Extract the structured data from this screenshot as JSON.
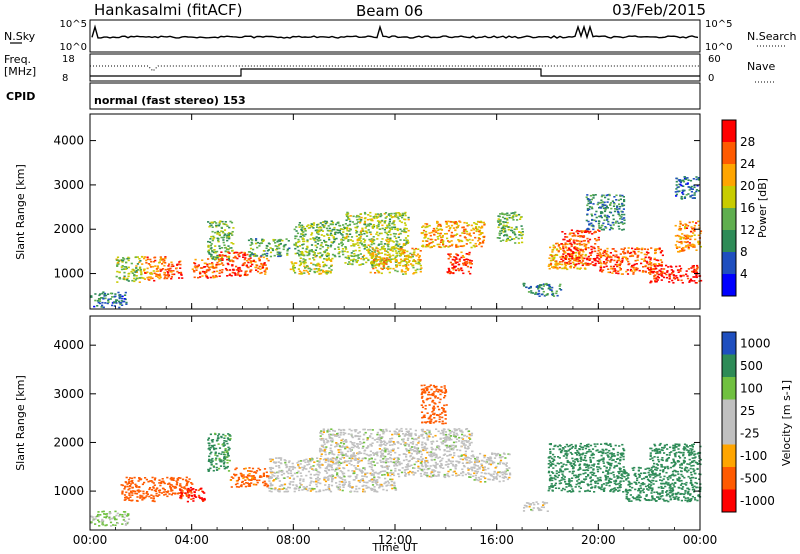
{
  "header": {
    "left_title": "Hankasalmi (fitACF)",
    "center_title": "Beam 06",
    "right_title": "03/Feb/2015"
  },
  "noise_panel": {
    "left_label": "N.Sky",
    "left_ticks": [
      "10^5",
      "10^0"
    ],
    "right_ticks": [
      "10^5",
      "10^0"
    ],
    "right_label": "N.Search"
  },
  "freq_panel": {
    "left_label_1": "Freq.",
    "left_label_2": "[MHz]",
    "left_ticks": [
      "18",
      "8"
    ],
    "right_ticks": [
      "60",
      "0"
    ],
    "right_label": "Nave"
  },
  "cpid_panel": {
    "label": "CPID",
    "mode_text": "normal (fast stereo) 153"
  },
  "colors": {
    "power": [
      "#0000ff",
      "#1f4fbf",
      "#2e8b57",
      "#5fae4f",
      "#c8cc00",
      "#ffa500",
      "#ff5a00",
      "#ff0000"
    ],
    "velocity": [
      "#ff0000",
      "#ff5a00",
      "#ffa500",
      "#c0c0c0",
      "#c0c0c0",
      "#70c040",
      "#2e8b57",
      "#1f4fbf"
    ]
  },
  "chart_data": [
    {
      "type": "heatmap",
      "name": "power",
      "xlabel": "",
      "ylabel": "Slant Range [km]",
      "x_unit": "hours UT",
      "xlim": [
        0,
        24
      ],
      "ylim": [
        200,
        4600
      ],
      "yticks": [
        1000,
        2000,
        3000,
        4000
      ],
      "ytick_labels": [
        "1000",
        "2000",
        "3000",
        "4000"
      ],
      "colorbar": {
        "label": "Power [dB]",
        "range": [
          0,
          32
        ],
        "ticks": [
          4,
          8,
          12,
          16,
          20,
          24,
          28
        ],
        "tick_labels": [
          "4",
          "8",
          "12",
          "16",
          "20",
          "24",
          "28"
        ]
      },
      "regions": [
        {
          "t": [
            0.0,
            1.4
          ],
          "r": [
            250,
            600
          ],
          "v": 8
        },
        {
          "t": [
            1.0,
            2.0
          ],
          "r": [
            800,
            1400
          ],
          "v": 16
        },
        {
          "t": [
            2.0,
            3.0
          ],
          "r": [
            850,
            1400
          ],
          "v": 24
        },
        {
          "t": [
            3.0,
            3.6
          ],
          "r": [
            900,
            1300
          ],
          "v": 28
        },
        {
          "t": [
            4.0,
            5.0
          ],
          "r": [
            900,
            1350
          ],
          "v": 26
        },
        {
          "t": [
            4.6,
            5.6
          ],
          "r": [
            1300,
            2200
          ],
          "v": 14
        },
        {
          "t": [
            5.0,
            6.2
          ],
          "r": [
            950,
            1500
          ],
          "v": 28
        },
        {
          "t": [
            6.2,
            7.0
          ],
          "r": [
            1000,
            1400
          ],
          "v": 26
        },
        {
          "t": [
            6.2,
            7.8
          ],
          "r": [
            1400,
            1800
          ],
          "v": 12
        },
        {
          "t": [
            7.8,
            9.5
          ],
          "r": [
            1000,
            1400
          ],
          "v": 18
        },
        {
          "t": [
            8.0,
            10.0
          ],
          "r": [
            1400,
            2200
          ],
          "v": 14
        },
        {
          "t": [
            10.0,
            12.5
          ],
          "r": [
            1200,
            2400
          ],
          "v": 16
        },
        {
          "t": [
            11.0,
            13.0
          ],
          "r": [
            1000,
            1600
          ],
          "v": 20
        },
        {
          "t": [
            13.0,
            15.5
          ],
          "r": [
            1600,
            2200
          ],
          "v": 22
        },
        {
          "t": [
            14.0,
            15.0
          ],
          "r": [
            1000,
            1500
          ],
          "v": 28
        },
        {
          "t": [
            16.0,
            17.0
          ],
          "r": [
            1700,
            2400
          ],
          "v": 14
        },
        {
          "t": [
            17.0,
            18.5
          ],
          "r": [
            500,
            800
          ],
          "v": 10
        },
        {
          "t": [
            18.0,
            19.5
          ],
          "r": [
            1100,
            1700
          ],
          "v": 22
        },
        {
          "t": [
            18.5,
            20.0
          ],
          "r": [
            1200,
            2000
          ],
          "v": 28
        },
        {
          "t": [
            19.5,
            21.0
          ],
          "r": [
            2000,
            2800
          ],
          "v": 10
        },
        {
          "t": [
            20.0,
            22.5
          ],
          "r": [
            1000,
            1600
          ],
          "v": 26
        },
        {
          "t": [
            22.0,
            24.0
          ],
          "r": [
            800,
            1200
          ],
          "v": 30
        },
        {
          "t": [
            23.0,
            24.0
          ],
          "r": [
            1500,
            2200
          ],
          "v": 24
        },
        {
          "t": [
            23.0,
            24.0
          ],
          "r": [
            2700,
            3200
          ],
          "v": 8
        }
      ]
    },
    {
      "type": "heatmap",
      "name": "velocity",
      "xlabel": "Time UT",
      "ylabel": "Slant Range [km]",
      "x_unit": "hours UT",
      "xlim": [
        0,
        24
      ],
      "ylim": [
        200,
        4600
      ],
      "xticks": [
        0,
        4,
        8,
        12,
        16,
        20,
        24
      ],
      "xtick_labels": [
        "00:00",
        "04:00",
        "08:00",
        "12:00",
        "16:00",
        "20:00",
        "00:00"
      ],
      "yticks": [
        1000,
        2000,
        3000,
        4000
      ],
      "ytick_labels": [
        "1000",
        "2000",
        "3000",
        "4000"
      ],
      "colorbar": {
        "label": "Velocity [m s-1]",
        "tick_labels": [
          "1000",
          "500",
          "100",
          "25",
          "-25",
          "-100",
          "-500",
          "-1000"
        ]
      },
      "regions": [
        {
          "t": [
            0.0,
            1.5
          ],
          "r": [
            300,
            600
          ],
          "v": 25
        },
        {
          "t": [
            1.2,
            2.5
          ],
          "r": [
            800,
            1300
          ],
          "v": -200
        },
        {
          "t": [
            2.5,
            4.0
          ],
          "r": [
            900,
            1300
          ],
          "v": -300
        },
        {
          "t": [
            3.5,
            4.5
          ],
          "r": [
            800,
            1100
          ],
          "v": -600
        },
        {
          "t": [
            4.6,
            5.5
          ],
          "r": [
            1400,
            2200
          ],
          "v": 150
        },
        {
          "t": [
            5.5,
            7.0
          ],
          "r": [
            1100,
            1500
          ],
          "v": -150
        },
        {
          "t": [
            7.0,
            12.0
          ],
          "r": [
            1000,
            1700
          ],
          "v": 0
        },
        {
          "t": [
            9.0,
            12.0
          ],
          "r": [
            1700,
            2300
          ],
          "v": 0
        },
        {
          "t": [
            12.0,
            15.0
          ],
          "r": [
            1300,
            2300
          ],
          "v": 0
        },
        {
          "t": [
            13.0,
            14.0
          ],
          "r": [
            2400,
            3200
          ],
          "v": -300
        },
        {
          "t": [
            15.0,
            16.5
          ],
          "r": [
            1200,
            1800
          ],
          "v": 0
        },
        {
          "t": [
            17.0,
            18.0
          ],
          "r": [
            600,
            800
          ],
          "v": 0
        },
        {
          "t": [
            18.0,
            21.0
          ],
          "r": [
            1000,
            2000
          ],
          "v": 300
        },
        {
          "t": [
            21.0,
            24.0
          ],
          "r": [
            800,
            1500
          ],
          "v": 200
        },
        {
          "t": [
            22.0,
            24.0
          ],
          "r": [
            1500,
            2000
          ],
          "v": 300
        }
      ]
    }
  ],
  "axes": {
    "x_label": "Time UT"
  }
}
